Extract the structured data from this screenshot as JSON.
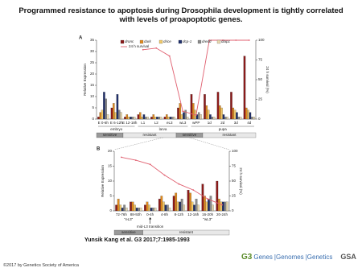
{
  "title": "Programmed resistance to apoptosis during Drosophila development is tightly correlated with levels of proapoptotic genes.",
  "chart_data": [
    {
      "type": "bar",
      "panel": "A",
      "y_label": "Relative Expression",
      "y2_label": "24 h survival (%)",
      "categories": [
        "E 0-6h",
        "E 6-12h",
        "E 12-18h",
        "L1",
        "L2",
        "eL3",
        "wL3",
        "wPP",
        "1d",
        "2d",
        "3d",
        "4d"
      ],
      "series": [
        {
          "name": "dronc",
          "color": "#8b1a1a",
          "values": [
            1,
            5,
            1,
            2,
            1,
            1,
            5,
            11,
            11,
            12,
            12,
            28
          ]
        },
        {
          "name": "dark",
          "color": "#e08a1e",
          "values": [
            3,
            7,
            2,
            3,
            2,
            2,
            7,
            7,
            6,
            6,
            5,
            5
          ]
        },
        {
          "name": "drice",
          "color": "#f0c96a",
          "values": [
            4,
            3,
            1,
            1,
            1,
            1,
            2,
            4,
            4,
            5,
            4,
            4
          ]
        },
        {
          "name": "dcp-1",
          "color": "#1f2f6b",
          "values": [
            12,
            11,
            1,
            2,
            1,
            1,
            3,
            2,
            2,
            2,
            3,
            3
          ]
        },
        {
          "name": "dredd",
          "color": "#8a8a8a",
          "values": [
            9,
            4,
            1,
            1,
            1,
            1,
            4,
            3,
            1,
            1,
            1,
            1
          ]
        },
        {
          "name": "diap1",
          "color": "#e8d9b0",
          "values": [
            2,
            3,
            1,
            1,
            1,
            1,
            1,
            2,
            1,
            1,
            1,
            1
          ]
        },
        {
          "name": "24 h survival",
          "type": "line",
          "axis": "y2",
          "color": "#e06070",
          "values": [
            null,
            null,
            null,
            88,
            90,
            80,
            10,
            5,
            100,
            100,
            100,
            100
          ]
        }
      ],
      "ylim": [
        0,
        35
      ],
      "yticks": [
        0,
        5,
        10,
        15,
        20,
        25,
        30,
        35
      ],
      "y2lim": [
        0,
        100
      ],
      "y2ticks": [
        0,
        25,
        50,
        75,
        100
      ],
      "stages": [
        "embryo",
        "larva",
        "pupa"
      ],
      "phases": [
        "sensitive",
        "resistant",
        "sensitive",
        "resistant"
      ]
    },
    {
      "type": "bar",
      "panel": "B",
      "y_label": "Relative Expression",
      "y2_label": "24 h survival (%)",
      "categories": [
        "72-76h",
        "88-92h",
        "0-4h",
        "4-8h",
        "8-12h",
        "12-16h",
        "16-20h",
        "20-24h"
      ],
      "series": [
        {
          "color": "#8b1a1a",
          "values": [
            2,
            3,
            2,
            4,
            5,
            7,
            9,
            10
          ]
        },
        {
          "color": "#e08a1e",
          "values": [
            4,
            3,
            3,
            5,
            6,
            6,
            5,
            4
          ]
        },
        {
          "color": "#f0c96a",
          "values": [
            2,
            2,
            2,
            3,
            3,
            3,
            3,
            3
          ]
        },
        {
          "color": "#1f2f6b",
          "values": [
            1,
            1,
            1,
            2,
            3,
            2,
            4,
            3
          ]
        },
        {
          "color": "#8a8a8a",
          "values": [
            2,
            1,
            1,
            2,
            4,
            4,
            5,
            3
          ]
        },
        {
          "color": "#e8d9b0",
          "values": [
            1,
            1,
            1,
            1,
            2,
            2,
            2,
            3
          ]
        },
        {
          "type": "line",
          "axis": "y2",
          "color": "#e06070",
          "values": [
            90,
            85,
            78,
            60,
            45,
            35,
            20,
            10
          ]
        }
      ],
      "ylim": [
        0,
        20
      ],
      "yticks": [
        0,
        5,
        10,
        15,
        20
      ],
      "y2lim": [
        0,
        100
      ],
      "y2ticks": [
        0,
        25,
        50,
        75,
        100
      ],
      "sublabels": [
        "\"eL3\"",
        "\"wL3\""
      ],
      "annotation": "mid-L3 transition",
      "phases": [
        "sensitive",
        "resistant"
      ]
    }
  ],
  "citation": "Yunsik Kang et al. G3 2017;7:1985-1993",
  "copyright": "©2017 by Genetics Society of America",
  "logo": {
    "journal": "G3",
    "words": [
      "Genes",
      "Genomes",
      "Genetics"
    ],
    "society": "GSA"
  }
}
